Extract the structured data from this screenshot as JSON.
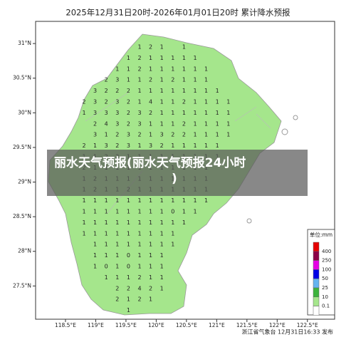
{
  "header": {
    "title": "2025年12月31日20时-2026年01月01日20时 累计降水预报"
  },
  "map": {
    "xlim": [
      118.006,
      122.95
    ],
    "ylim": [
      27.02,
      31.32
    ],
    "yticks": [
      {
        "value": 31,
        "label": "31°N"
      },
      {
        "value": 30.5,
        "label": "30.5°N"
      },
      {
        "value": 30,
        "label": "30°N"
      },
      {
        "value": 29.5,
        "label": "29.5°N"
      },
      {
        "value": 29,
        "label": "29°N"
      },
      {
        "value": 28.5,
        "label": "28.5°N"
      },
      {
        "value": 28,
        "label": "28°N"
      },
      {
        "value": 27.5,
        "label": "27.5°N"
      }
    ],
    "xticks": [
      {
        "value": 118.5,
        "label": "118.5°E"
      },
      {
        "value": 119,
        "label": "119°E"
      },
      {
        "value": 119.5,
        "label": "119.5°E"
      },
      {
        "value": 120,
        "label": "120°E"
      },
      {
        "value": 120.5,
        "label": "120.5°E"
      },
      {
        "value": 121,
        "label": "121°E"
      },
      {
        "value": 121.5,
        "label": "121.5°E"
      },
      {
        "value": 122,
        "label": "122°E"
      },
      {
        "value": 122.5,
        "label": "122.5°E"
      }
    ],
    "grid": [
      [
        null,
        null,
        null,
        null,
        null,
        1,
        2,
        1,
        null,
        1
      ],
      [
        null,
        null,
        null,
        null,
        1,
        2,
        1,
        1,
        1,
        1,
        1
      ],
      [
        null,
        null,
        null,
        1,
        1,
        2,
        1,
        1,
        1,
        1,
        1,
        1
      ],
      [
        null,
        null,
        2,
        3,
        1,
        1,
        2,
        1,
        2,
        1,
        1,
        1
      ],
      [
        null,
        3,
        2,
        2,
        2,
        1,
        1,
        1,
        1,
        1,
        1,
        1,
        1
      ],
      [
        2,
        3,
        2,
        3,
        2,
        1,
        4,
        1,
        1,
        2,
        1,
        1,
        1,
        1
      ],
      [
        1,
        3,
        3,
        3,
        2,
        3,
        2,
        1,
        1,
        1,
        1,
        1,
        1,
        1
      ],
      [
        null,
        2,
        4,
        3,
        2,
        3,
        1,
        1,
        1,
        2,
        1,
        1,
        1,
        1
      ],
      [
        null,
        3,
        1,
        2,
        3,
        2,
        1,
        3,
        2,
        2,
        1,
        1,
        1,
        1
      ],
      [
        2,
        1,
        3,
        2,
        3,
        1,
        3,
        2,
        1,
        1,
        1,
        1,
        1
      ],
      [
        1,
        1,
        2,
        2,
        1,
        1,
        1,
        1,
        1,
        1,
        1,
        1,
        1
      ],
      [
        2,
        1,
        1,
        1,
        1,
        1,
        1,
        1,
        1,
        1,
        1,
        1
      ],
      [
        1,
        2,
        1,
        1,
        1,
        1,
        1,
        1,
        1,
        1,
        1,
        1
      ],
      [
        1,
        2,
        1,
        1,
        2,
        1,
        1,
        1,
        1,
        1,
        1,
        1
      ],
      [
        1,
        1,
        1,
        1,
        1,
        1,
        1,
        1,
        1,
        1,
        1,
        1
      ],
      [
        1,
        1,
        1,
        1,
        1,
        1,
        1,
        1,
        0,
        1,
        1
      ],
      [
        1,
        1,
        1,
        1,
        1,
        1,
        1,
        1,
        1,
        1
      ],
      [
        1,
        1,
        1,
        1,
        1,
        1,
        1,
        1,
        1
      ],
      [
        null,
        1,
        1,
        1,
        1,
        1,
        1,
        1,
        1
      ],
      [
        null,
        1,
        1,
        1,
        0,
        1,
        1,
        1
      ],
      [
        null,
        1,
        0,
        1,
        0,
        1,
        1,
        1
      ],
      [
        null,
        null,
        1,
        1,
        1,
        2,
        1,
        1
      ],
      [
        null,
        null,
        null,
        2,
        2,
        4,
        2,
        1
      ],
      [
        null,
        null,
        null,
        2,
        1,
        2,
        1
      ],
      [
        null,
        null,
        null,
        null,
        1
      ]
    ]
  },
  "legend": {
    "title": "单位:mm",
    "colors": [
      "#e60000",
      "#8c0046",
      "#e600e6",
      "#0000e6",
      "#64b4f0",
      "#3cb43c",
      "#a5e68c",
      "#ffffff"
    ],
    "labels": [
      "400",
      "250",
      "100",
      "50",
      "25",
      "10",
      "0.1"
    ]
  },
  "footer": "浙江省气象台 12月31日16:33 发布",
  "banner": {
    "line1": "丽水天气预报(丽水天气预报24小时",
    "line2": ")"
  }
}
